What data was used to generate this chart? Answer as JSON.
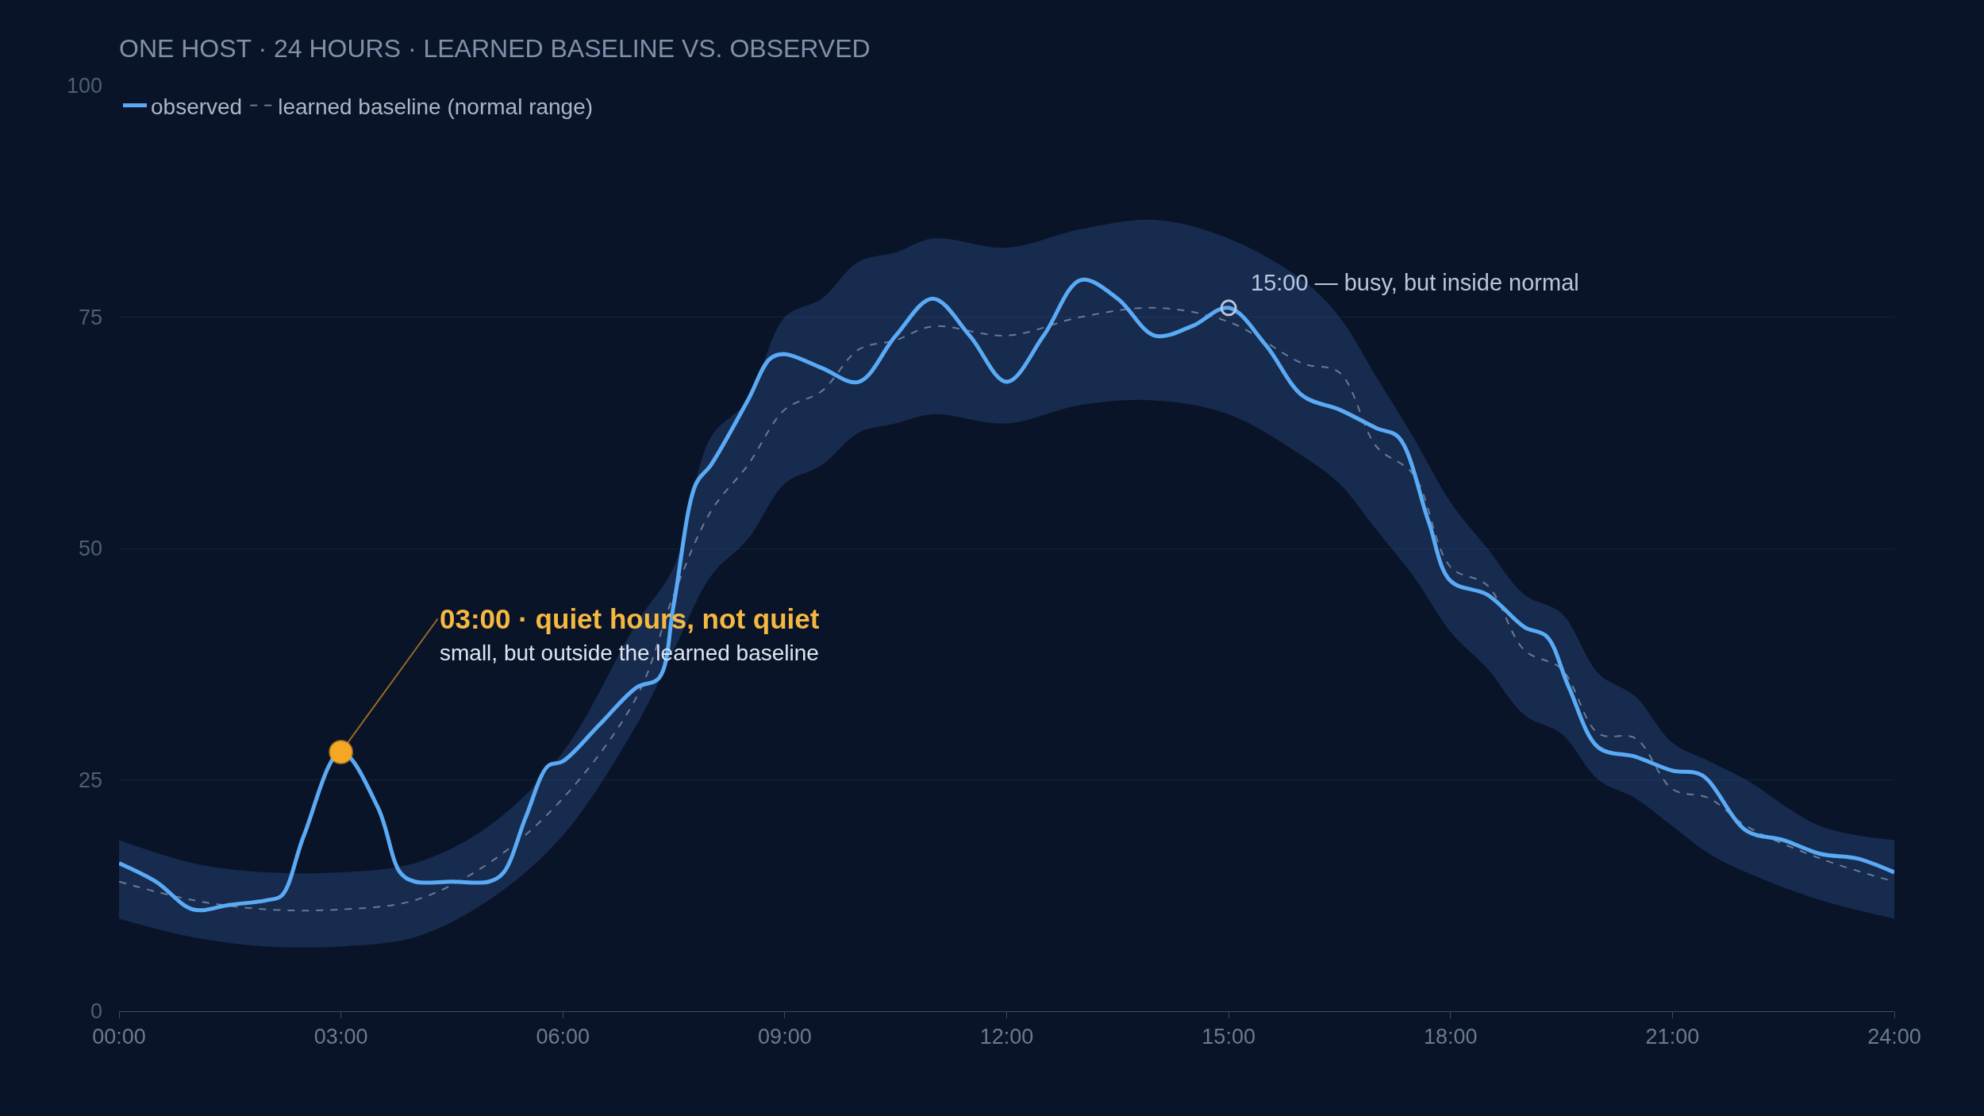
{
  "chart_data": {
    "type": "line",
    "title": "ONE HOST · 24 HOURS · LEARNED BASELINE VS. OBSERVED",
    "xlim": [
      0,
      24
    ],
    "xticks": [
      {
        "value": 0,
        "label": "00:00"
      },
      {
        "value": 3,
        "label": "03:00"
      },
      {
        "value": 6,
        "label": "06:00"
      },
      {
        "value": 9,
        "label": "09:00"
      },
      {
        "value": 12,
        "label": "12:00"
      },
      {
        "value": 15,
        "label": "15:00"
      },
      {
        "value": 18,
        "label": "18:00"
      },
      {
        "value": 21,
        "label": "21:00"
      },
      {
        "value": 24,
        "label": "24:00"
      }
    ],
    "ylim": [
      0,
      100
    ],
    "yticks": [
      0,
      25,
      50,
      75,
      100
    ],
    "grid": "y",
    "legend": "top left",
    "series": [
      {
        "name": "learned baseline (normal range)",
        "color": "#6b7a93",
        "line_style": "dashed",
        "x": [
          0,
          1,
          2,
          3,
          4,
          5,
          6,
          7,
          7.5,
          8,
          8.5,
          9,
          9.5,
          10,
          10.5,
          11,
          12,
          13,
          14,
          15,
          16,
          16.5,
          17,
          17.5,
          18,
          18.5,
          19,
          19.5,
          20,
          20.5,
          21,
          21.5,
          22,
          23,
          24
        ],
        "values": [
          14,
          12,
          11,
          11,
          12,
          16,
          23,
          34,
          45,
          54,
          59,
          65,
          67,
          71.5,
          72.5,
          74,
          73,
          75,
          76,
          74.5,
          70,
          69,
          61,
          58,
          48,
          46,
          39,
          37,
          30,
          29.5,
          24,
          23,
          20,
          16.5,
          14
        ],
        "lower": [
          10,
          8,
          7,
          7,
          8,
          12,
          19,
          31,
          39,
          47,
          51,
          57,
          59,
          62.5,
          63.5,
          64.5,
          63.5,
          65.5,
          66,
          64.5,
          60,
          57,
          52,
          47,
          41,
          37,
          32,
          30,
          25,
          23,
          20,
          17,
          15,
          12,
          10
        ],
        "upper": [
          18.5,
          16,
          15,
          15,
          16,
          20,
          28,
          42,
          48,
          62,
          66,
          75,
          77,
          81,
          82,
          83.5,
          82.5,
          84.5,
          85.5,
          83.5,
          79,
          75,
          68.5,
          62,
          55,
          50,
          45,
          43,
          36.5,
          34,
          29,
          27,
          25,
          20,
          18.5
        ]
      },
      {
        "name": "observed",
        "color": "#5aaaf5",
        "line_style": "solid",
        "x": [
          0,
          0.5,
          1,
          1.5,
          2,
          2.2,
          2.5,
          3,
          3.5,
          3.8,
          4,
          4.5,
          5,
          5.2,
          5.5,
          5.8,
          6,
          6.5,
          7,
          7.3,
          7.5,
          7.8,
          8,
          8.5,
          8.8,
          9,
          9.5,
          10,
          10.5,
          11,
          11.5,
          12,
          12.5,
          13,
          13.5,
          14,
          14.5,
          15,
          15.5,
          16,
          16.5,
          17,
          17.3,
          17.7,
          18,
          18.5,
          19,
          19.3,
          19.6,
          20,
          20.5,
          21,
          21.4,
          22,
          22.5,
          23,
          23.5,
          24
        ],
        "values": [
          16,
          14,
          11,
          11.5,
          12,
          12.5,
          19,
          28,
          22,
          15,
          14,
          14,
          14,
          15,
          21,
          26.5,
          27,
          31,
          35,
          36,
          44,
          57,
          59,
          66,
          70.5,
          71,
          69.5,
          68,
          73,
          77,
          73,
          68,
          73,
          79,
          77,
          73,
          74,
          76,
          72,
          66.5,
          65,
          63,
          62,
          53,
          46.5,
          45,
          41.5,
          40.5,
          35,
          28.5,
          27.5,
          26,
          25.5,
          19.5,
          18.5,
          17,
          16.5,
          15
        ]
      }
    ],
    "annotations": [
      {
        "text": "03:00 · quiet hours, not quiet",
        "x": 3,
        "y": 28
      },
      "small, but outside the learned baseline",
      {
        "text": "15:00 — busy, but inside normal",
        "x": 15,
        "y": 76
      }
    ]
  }
}
